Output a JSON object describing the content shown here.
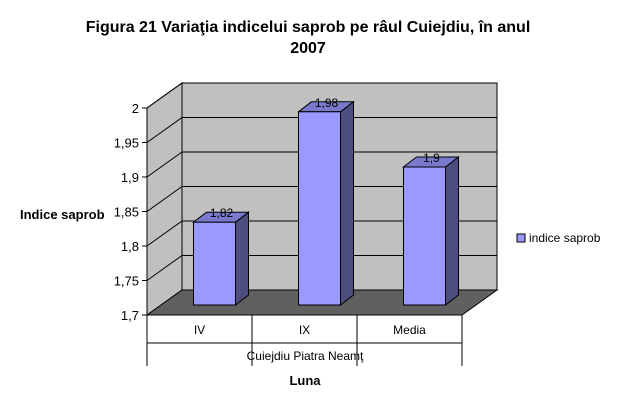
{
  "chart_data": {
    "type": "bar",
    "title_line1": "Figura 21  Variaţia indicelui saprob pe râul Cuiejdiu, în anul",
    "title_line2": "2007",
    "ylabel": "Indice saprob",
    "xlabel": "Luna",
    "group_label": "Cuiejdiu Piatra Neamţ",
    "categories": [
      "IV",
      "IX",
      "Media"
    ],
    "series": [
      {
        "name": "indice saprob",
        "values": [
          1.82,
          1.98,
          1.9
        ],
        "value_labels": [
          "1,82",
          "1,98",
          "1,9"
        ]
      }
    ],
    "ylim": [
      1.7,
      2.0
    ],
    "yticks": [
      "1,7",
      "1,75",
      "1,8",
      "1,85",
      "1,9",
      "1,95",
      "2"
    ],
    "legend_position": "right",
    "bar_color": "#9999ff",
    "bar_top_color": "#7a7acc",
    "bar_side_color": "#4d4d80",
    "wall_color": "#c0c0c0",
    "floor_color": "#606060"
  }
}
